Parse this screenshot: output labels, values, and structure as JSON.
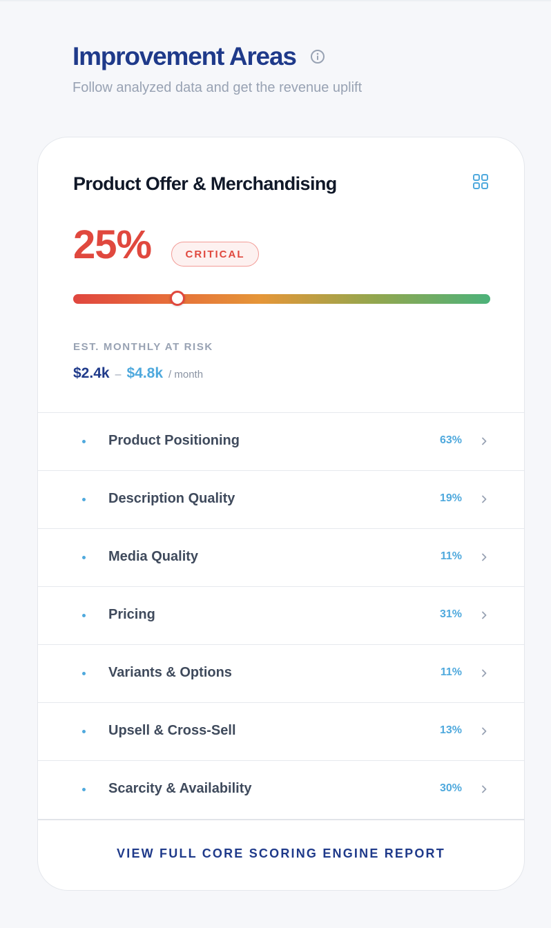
{
  "header": {
    "title": "Improvement Areas",
    "subtitle": "Follow analyzed data and get the revenue uplift"
  },
  "card": {
    "title": "Product Offer & Merchandising",
    "score": "25%",
    "score_value": 25,
    "badge": "CRITICAL",
    "risk_label": "EST. MONTHLY AT RISK",
    "risk_low": "$2.4k",
    "risk_separator": "–",
    "risk_high": "$4.8k",
    "risk_unit": "/ month",
    "items": [
      {
        "label": "Product Positioning",
        "pct": "63%"
      },
      {
        "label": "Description Quality",
        "pct": "19%"
      },
      {
        "label": "Media Quality",
        "pct": "11%"
      },
      {
        "label": "Pricing",
        "pct": "31%"
      },
      {
        "label": "Variants & Options",
        "pct": "11%"
      },
      {
        "label": "Upsell & Cross-Sell",
        "pct": "13%"
      },
      {
        "label": "Scarcity & Availability",
        "pct": "30%"
      }
    ],
    "footer_link": "VIEW FULL CORE SCORING ENGINE REPORT"
  },
  "colors": {
    "brand_navy": "#1f3a8a",
    "critical_red": "#e0483e",
    "accent_blue": "#4fa9dd",
    "good_green": "#4cb27a"
  },
  "icons": {
    "info": "info-icon",
    "grid": "grid-icon",
    "chevron": "chevron-right-icon"
  }
}
